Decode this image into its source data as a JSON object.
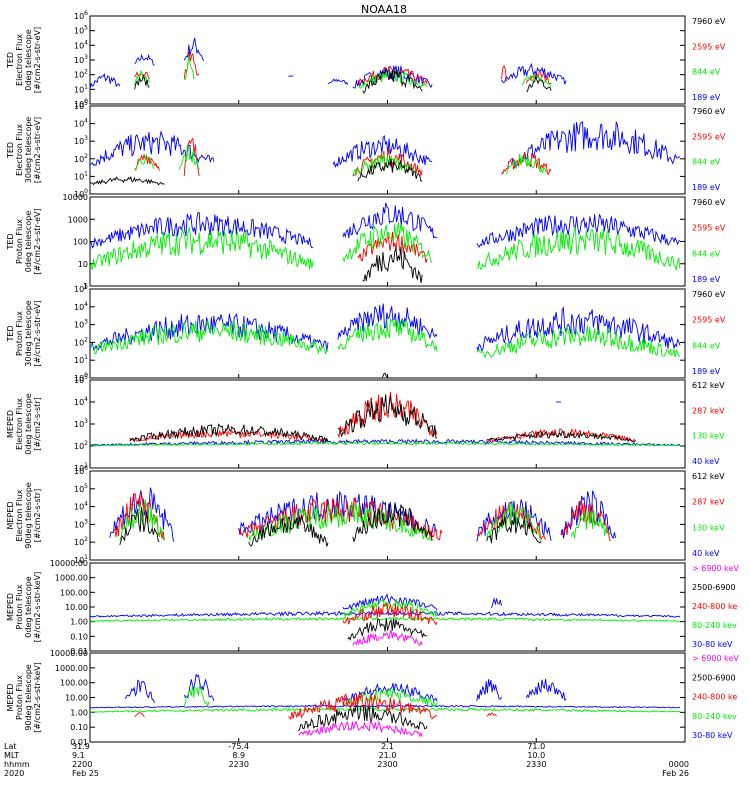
{
  "title": "NOAA18",
  "x_axis": {
    "row_labels": [
      "Lat",
      "MLT",
      "hhmm",
      "2020"
    ],
    "ticks": [
      {
        "lat": "31.9",
        "mlt": "9.1",
        "hhmm": "2200",
        "date": "Feb 25"
      },
      {
        "lat": "-75.4",
        "mlt": "8.9",
        "hhmm": "2230",
        "date": ""
      },
      {
        "lat": "2.1",
        "mlt": "21.0",
        "hhmm": "2300",
        "date": ""
      },
      {
        "lat": "71.0",
        "mlt": "10.0",
        "hhmm": "2330",
        "date": ""
      },
      {
        "lat": "",
        "mlt": "",
        "hhmm": "0000",
        "date": "Feb 26"
      }
    ]
  },
  "colors": {
    "black": "#000000",
    "red": "#ff0000",
    "green": "#00ee00",
    "blue": "#0000ff",
    "magenta": "#ff00ff"
  },
  "chart_data": [
    {
      "type": "line",
      "panel": 1,
      "ylabel": [
        "TED",
        "Electron Flux",
        "0deg telescope",
        "[#/cm2-s-str-eV]"
      ],
      "yscale": "log",
      "ylim": [
        1,
        1000000
      ],
      "yticks": [
        "10^0",
        "10^1",
        "10^2",
        "10^3",
        "10^4",
        "10^5",
        "10^6"
      ],
      "legend": [
        {
          "label": "7960 eV",
          "color": "black"
        },
        {
          "label": "2595 eV",
          "color": "red"
        },
        {
          "label": "844 eV",
          "color": "green"
        },
        {
          "label": "189 eV",
          "color": "blue"
        }
      ],
      "series": [
        {
          "color": "blue",
          "segments": [
            [
              2200,
              2206,
              10,
              150
            ],
            [
              2209,
              2213,
              400,
              3000
            ],
            [
              2219,
              2223,
              500,
              40000
            ],
            [
              2240,
              2241,
              80,
              80
            ],
            [
              2248,
              2252,
              20,
              60
            ],
            [
              2253,
              2309,
              10,
              500
            ],
            [
              2323,
              2336,
              20,
              600
            ]
          ]
        },
        {
          "color": "red",
          "segments": [
            [
              2209,
              2212,
              50,
              300
            ],
            [
              2219,
              2222,
              40,
              6000
            ],
            [
              2254,
              2308,
              20,
              400
            ],
            [
              2323,
              2324,
              20,
              1000
            ],
            [
              2328,
              2333,
              20,
              200
            ]
          ]
        },
        {
          "color": "green",
          "segments": [
            [
              2209,
              2212,
              20,
              200
            ],
            [
              2219,
              2221,
              20,
              2000
            ],
            [
              2254,
              2308,
              10,
              200
            ],
            [
              2327,
              2333,
              15,
              150
            ]
          ]
        },
        {
          "color": "black",
          "segments": [
            [
              2209,
              2212,
              10,
              100
            ],
            [
              2255,
              2307,
              5,
              300
            ],
            [
              2328,
              2333,
              5,
              100
            ]
          ]
        }
      ]
    },
    {
      "type": "line",
      "panel": 2,
      "ylabel": [
        "TED",
        "Electron Flux",
        "30deg telescope",
        "[#/cm2-s-str-eV]"
      ],
      "yscale": "log",
      "ylim": [
        1,
        100000
      ],
      "yticks": [
        "10^0",
        "10^1",
        "10^2",
        "10^3",
        "10^4",
        "10^5"
      ],
      "legend": [
        {
          "label": "7960 eV",
          "color": "black"
        },
        {
          "label": "2595 eV",
          "color": "red"
        },
        {
          "label": "844 eV",
          "color": "green"
        },
        {
          "label": "189 eV",
          "color": "blue"
        }
      ],
      "series": [
        {
          "color": "blue",
          "segments": [
            [
              2200,
              2225,
              30,
              4000
            ],
            [
              2249,
              2309,
              30,
              2000
            ],
            [
              2325,
              2359,
              30,
              20000
            ]
          ]
        },
        {
          "color": "red",
          "segments": [
            [
              2209,
              2214,
              20,
              300
            ],
            [
              2219,
              2222,
              10,
              3000
            ],
            [
              2253,
              2307,
              10,
              400
            ],
            [
              2323,
              2333,
              10,
              300
            ]
          ]
        },
        {
          "color": "green",
          "segments": [
            [
              2209,
              2213,
              20,
              200
            ],
            [
              2218,
              2222,
              10,
              1000
            ],
            [
              2253,
              2306,
              10,
              200
            ],
            [
              2324,
              2332,
              10,
              300
            ]
          ]
        },
        {
          "color": "black",
          "segments": [
            [
              2200,
              2215,
              3,
              10
            ],
            [
              2254,
              2307,
              5,
              100
            ]
          ]
        }
      ]
    },
    {
      "type": "line",
      "panel": 3,
      "ylabel": [
        "TED",
        "Proton Flux",
        "0deg telescope",
        "[#/cm2-s-str-eV]"
      ],
      "yscale": "log",
      "ylim": [
        1,
        10000
      ],
      "yticks": [
        "1",
        "10",
        "100",
        "1000",
        "10000"
      ],
      "legend": [
        {
          "label": "7960 eV",
          "color": "black"
        },
        {
          "label": "2595 eV",
          "color": "red"
        },
        {
          "label": "844 eV",
          "color": "green"
        },
        {
          "label": "189 eV",
          "color": "blue"
        }
      ],
      "series": [
        {
          "color": "blue",
          "segments": [
            [
              2200,
              2245,
              50,
              2000
            ],
            [
              2251,
              2310,
              100,
              7000
            ],
            [
              2318,
              2359,
              50,
              2000
            ]
          ]
        },
        {
          "color": "red",
          "segments": [
            [
              2254,
              2308,
              10,
              300
            ]
          ]
        },
        {
          "color": "green",
          "segments": [
            [
              2200,
              2245,
              5,
              500
            ],
            [
              2251,
              2309,
              10,
              1000
            ],
            [
              2318,
              2359,
              5,
              500
            ]
          ]
        },
        {
          "color": "black",
          "segments": [
            [
              2255,
              2307,
              1,
              100
            ]
          ]
        }
      ]
    },
    {
      "type": "line",
      "panel": 4,
      "ylabel": [
        "TED",
        "Proton Flux",
        "30deg telescope",
        "[#/cm2-s-str-eV]"
      ],
      "yscale": "log",
      "ylim": [
        1,
        100000
      ],
      "yticks": [
        "10^0",
        "10^1",
        "10^2",
        "10^3",
        "10^4",
        "10^5"
      ],
      "legend": [
        {
          "label": "7960 eV",
          "color": "black"
        },
        {
          "label": "2595 eV",
          "color": "red"
        },
        {
          "label": "844 eV",
          "color": "green"
        },
        {
          "label": "189 eV",
          "color": "blue"
        }
      ],
      "series": [
        {
          "color": "blue",
          "segments": [
            [
              2200,
              2248,
              30,
              5000
            ],
            [
              2250,
              2310,
              100,
              20000
            ],
            [
              2318,
              2359,
              30,
              10000
            ]
          ]
        },
        {
          "color": "green",
          "segments": [
            [
              2200,
              2248,
              20,
              2000
            ],
            [
              2250,
              2310,
              30,
              3000
            ],
            [
              2318,
              2359,
              10,
              1000
            ]
          ]
        },
        {
          "color": "black",
          "segments": [
            [
              2259,
              2260,
              1,
              2
            ]
          ]
        }
      ]
    },
    {
      "type": "line",
      "panel": 5,
      "ylabel": [
        "MEPED",
        "Electron Flux",
        "0deg telescope",
        "[#/cm2-s-str]"
      ],
      "yscale": "log",
      "ylim": [
        10,
        100000
      ],
      "yticks": [
        "10^1",
        "10^2",
        "10^3",
        "10^4",
        "10^5"
      ],
      "legend": [
        {
          "label": "612 keV",
          "color": "black"
        },
        {
          "label": "287 keV",
          "color": "red"
        },
        {
          "label": "130 keV",
          "color": "green"
        },
        {
          "label": "40 keV",
          "color": "blue"
        }
      ],
      "series": [
        {
          "color": "blue",
          "segments": [
            [
              2200,
              2359,
              100,
              200
            ],
            [
              2334,
              2335,
              10000,
              10000
            ]
          ]
        },
        {
          "color": "red",
          "segments": [
            [
              2208,
              2248,
              150,
              600
            ],
            [
              2250,
              2310,
              200,
              30000
            ],
            [
              2320,
              2350,
              150,
              600
            ]
          ]
        },
        {
          "color": "green",
          "segments": [
            [
              2200,
              2359,
              100,
              150
            ]
          ]
        },
        {
          "color": "black",
          "segments": [
            [
              2208,
              2248,
              150,
              1000
            ],
            [
              2250,
              2310,
              200,
              25000
            ],
            [
              2320,
              2350,
              150,
              500
            ]
          ]
        }
      ]
    },
    {
      "type": "line",
      "panel": 6,
      "ylabel": [
        "MEPED",
        "Electron Flux",
        "90deg telescope",
        "[#/cm2-s-str]"
      ],
      "yscale": "log",
      "ylim": [
        10,
        1000000
      ],
      "yticks": [
        "10^1",
        "10^2",
        "10^3",
        "10^4",
        "10^5",
        "10^6"
      ],
      "legend": [
        {
          "label": "612 keV",
          "color": "black"
        },
        {
          "label": "287 keV",
          "color": "red"
        },
        {
          "label": "130 keV",
          "color": "green"
        },
        {
          "label": "40 keV",
          "color": "blue"
        }
      ],
      "series": [
        {
          "color": "blue",
          "segments": [
            [
              2204,
              2217,
              100,
              200000
            ],
            [
              2230,
              2310,
              200,
              100000
            ],
            [
              2318,
              2333,
              100,
              50000
            ],
            [
              2335,
              2346,
              100,
              100000
            ]
          ]
        },
        {
          "color": "red",
          "segments": [
            [
              2205,
              2215,
              100,
              100000
            ],
            [
              2230,
              2311,
              100,
              40000
            ],
            [
              2318,
              2332,
              100,
              20000
            ],
            [
              2335,
              2345,
              100,
              50000
            ]
          ]
        },
        {
          "color": "green",
          "segments": [
            [
              2206,
              2215,
              100,
              30000
            ],
            [
              2232,
              2309,
              100,
              20000
            ],
            [
              2320,
              2331,
              100,
              20000
            ],
            [
              2337,
              2345,
              100,
              10000
            ]
          ]
        },
        {
          "color": "black",
          "segments": [
            [
              2206,
              2214,
              50,
              10000
            ],
            [
              2232,
              2248,
              50,
              5000
            ],
            [
              2253,
              2309,
              100,
              20000
            ],
            [
              2320,
              2331,
              50,
              5000
            ]
          ]
        }
      ]
    },
    {
      "type": "line",
      "panel": 7,
      "ylabel": [
        "MEPED",
        "Proton Flux",
        "0deg telescope",
        "[#/cm2-s-str-keV]"
      ],
      "yscale": "log",
      "ylim": [
        0.01,
        10000
      ],
      "yticks": [
        "0.01",
        "0.10",
        "1.00",
        "10.00",
        "100.00",
        "1000.00",
        "10000.00"
      ],
      "legend": [
        {
          "label": "> 6900 keV",
          "color": "magenta"
        },
        {
          "label": "2500-6900",
          "color": "black"
        },
        {
          "label": "240-800 ke",
          "color": "red"
        },
        {
          "label": "80-240 kev",
          "color": "green"
        },
        {
          "label": "30-80 keV",
          "color": "blue"
        }
      ],
      "series": [
        {
          "color": "blue",
          "segments": [
            [
              2200,
              2359,
              2,
              5
            ],
            [
              2251,
              2310,
              5,
              80
            ],
            [
              2321,
              2323,
              5,
              200
            ]
          ]
        },
        {
          "color": "green",
          "segments": [
            [
              2200,
              2359,
              1,
              2
            ],
            [
              2251,
              2310,
              2,
              50
            ]
          ]
        },
        {
          "color": "red",
          "segments": [
            [
              2251,
              2310,
              0.5,
              20
            ]
          ]
        },
        {
          "color": "black",
          "segments": [
            [
              2252,
              2308,
              0.05,
              2
            ]
          ]
        },
        {
          "color": "magenta",
          "segments": [
            [
              2253,
              2307,
              0.02,
              0.3
            ]
          ]
        }
      ]
    },
    {
      "type": "line",
      "panel": 8,
      "ylabel": [
        "MEPED",
        "Proton Flux",
        "90deg telescope",
        "[#/cm2-s-str-keV]"
      ],
      "yscale": "log",
      "ylim": [
        0.01,
        10000
      ],
      "yticks": [
        "0.01",
        "0.10",
        "1.00",
        "10.00",
        "100.00",
        "1000.00",
        "10000.00"
      ],
      "legend": [
        {
          "label": "> 6900 keV",
          "color": "magenta"
        },
        {
          "label": "2500-6900",
          "color": "black"
        },
        {
          "label": "240-800 ke",
          "color": "red"
        },
        {
          "label": "80-240 kev",
          "color": "green"
        },
        {
          "label": "30-80 keV",
          "color": "blue"
        }
      ],
      "series": [
        {
          "color": "blue",
          "segments": [
            [
              2200,
              2359,
              2,
              3
            ],
            [
              2207,
              2213,
              3,
              200
            ],
            [
              2219,
              2225,
              5,
              500
            ],
            [
              2251,
              2310,
              5,
              100
            ],
            [
              2318,
              2323,
              5,
              200
            ],
            [
              2328,
              2336,
              5,
              300
            ]
          ]
        },
        {
          "color": "green",
          "segments": [
            [
              2200,
              2359,
              1,
              2
            ],
            [
              2219,
              2224,
              2,
              100
            ],
            [
              2251,
              2310,
              2,
              50
            ]
          ]
        },
        {
          "color": "red",
          "segments": [
            [
              2209,
              2211,
              0.5,
              1
            ],
            [
              2240,
              2310,
              0.3,
              20
            ],
            [
              2320,
              2322,
              0.5,
              1
            ]
          ]
        },
        {
          "color": "black",
          "segments": [
            [
              2242,
              2308,
              0.05,
              3
            ]
          ]
        },
        {
          "color": "magenta",
          "segments": [
            [
              2242,
              2307,
              0.02,
              0.3
            ]
          ]
        }
      ]
    }
  ]
}
